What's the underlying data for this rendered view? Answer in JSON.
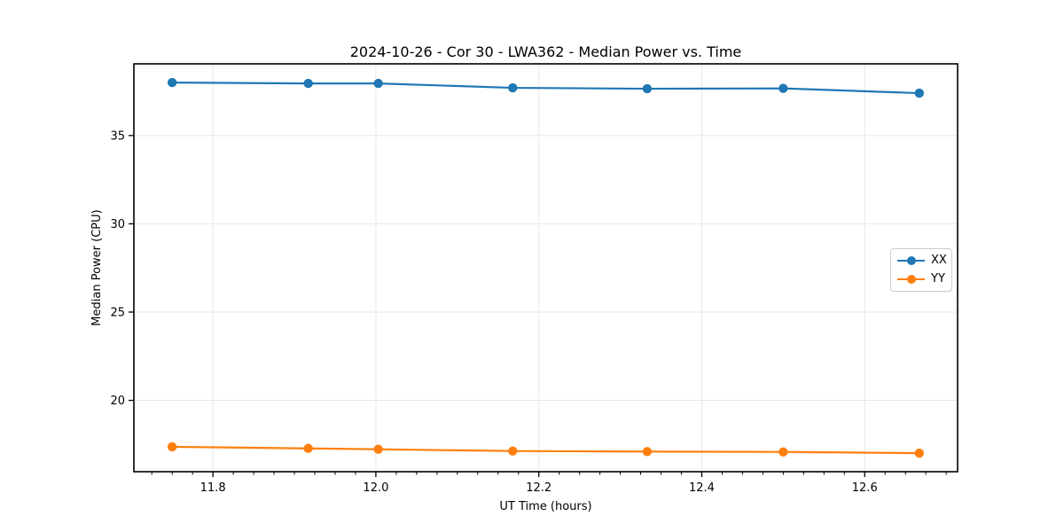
{
  "figure": {
    "title": "2024-10-26 - Cor 30 - LWA362 - Median Power vs. Time"
  },
  "chart_data": {
    "type": "line",
    "title": "2024-10-26 - Cor 30 - LWA362 - Median Power vs. Time",
    "xlabel": "UT Time (hours)",
    "ylabel": "Median Power (CPU)",
    "x": [
      11.75,
      11.917,
      12.003,
      12.168,
      12.333,
      12.5,
      12.667
    ],
    "series": [
      {
        "name": "XX",
        "color": "#1f77b4",
        "values": [
          38.0,
          37.95,
          37.95,
          37.7,
          37.65,
          37.67,
          37.4
        ]
      },
      {
        "name": "YY",
        "color": "#ff7f0e",
        "values": [
          17.37,
          17.28,
          17.23,
          17.13,
          17.1,
          17.08,
          17.01
        ]
      }
    ],
    "xlim": [
      11.703,
      12.714
    ],
    "ylim": [
      15.96,
      39.06
    ],
    "xticks": [
      11.8,
      12.0,
      12.2,
      12.4,
      12.6
    ],
    "xtick_labels": [
      "11.8",
      "12.0",
      "12.2",
      "12.4",
      "12.6"
    ],
    "yticks": [
      20,
      25,
      30,
      35
    ],
    "ytick_labels": [
      "20",
      "25",
      "30",
      "35"
    ],
    "minor_xtick_step": 0.025,
    "grid": true,
    "grid_color": "#e7e7e7",
    "spine_color": "#000000",
    "tick_color": "#000000",
    "text_color": "#000000",
    "legend": {
      "position": "center right",
      "entries": [
        "XX",
        "YY"
      ]
    }
  }
}
